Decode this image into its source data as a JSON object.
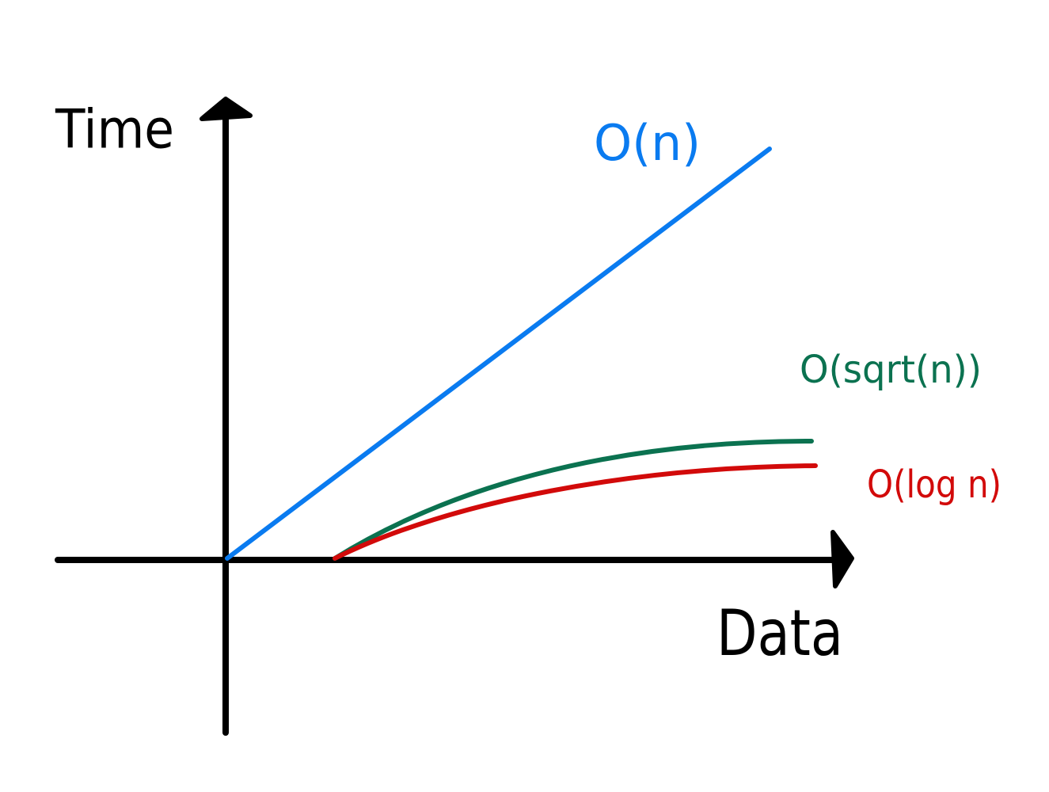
{
  "axes": {
    "y_label": "Time",
    "x_label": "Data"
  },
  "curves": [
    {
      "label": "O(n)"
    },
    {
      "label": "O(sqrt(n))"
    },
    {
      "label": "O(log n)"
    }
  ]
}
